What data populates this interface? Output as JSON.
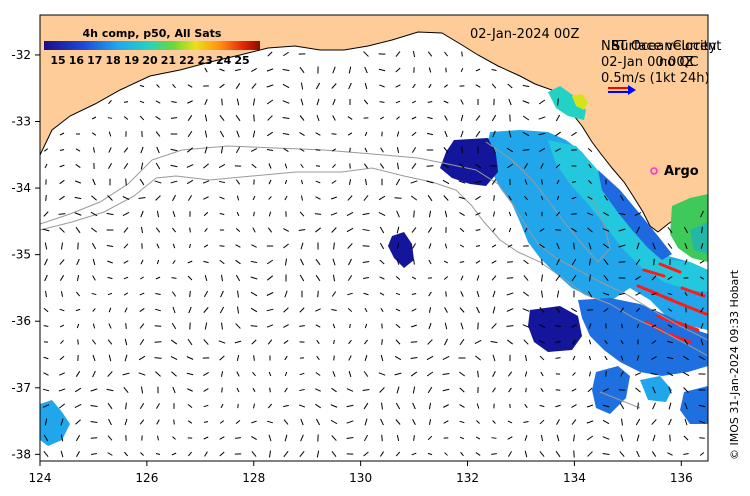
{
  "map": {
    "date_label": "02-Jan-2024 00Z",
    "colorbar_title": "4h comp, p50, All Sats",
    "colorbar_ticks": [
      "15",
      "16",
      "17",
      "18",
      "19",
      "20",
      "21",
      "22",
      "23",
      "24",
      "25"
    ],
    "legend_title_a": "NRT OceanCurrent",
    "legend_title_b": "Surface velocity",
    "legend_subtitle_a": "02-Jan 00:00Z",
    "legend_subtitle_b": "no QC",
    "legend_scale": "0.5m/s (1kt 24h)",
    "argo_label": "Argo",
    "credit": "© IMOS 31-Jan-2024 09:33 Hobart",
    "x_ticks": [
      "124",
      "126",
      "128",
      "130",
      "132",
      "134",
      "136"
    ],
    "y_ticks": [
      "-32",
      "-33",
      "-34",
      "-35",
      "-36",
      "-37",
      "-38"
    ],
    "colors": {
      "land": "#fdcc99",
      "colorbar_start": "#1a0e86",
      "colorbar_mid": "#22d7d4",
      "colorbar_end": "#8a0c00",
      "argo_marker": "#ff33cc",
      "legend_arrow_red": "#ff0000",
      "legend_arrow_blue": "#0000ff"
    }
  }
}
